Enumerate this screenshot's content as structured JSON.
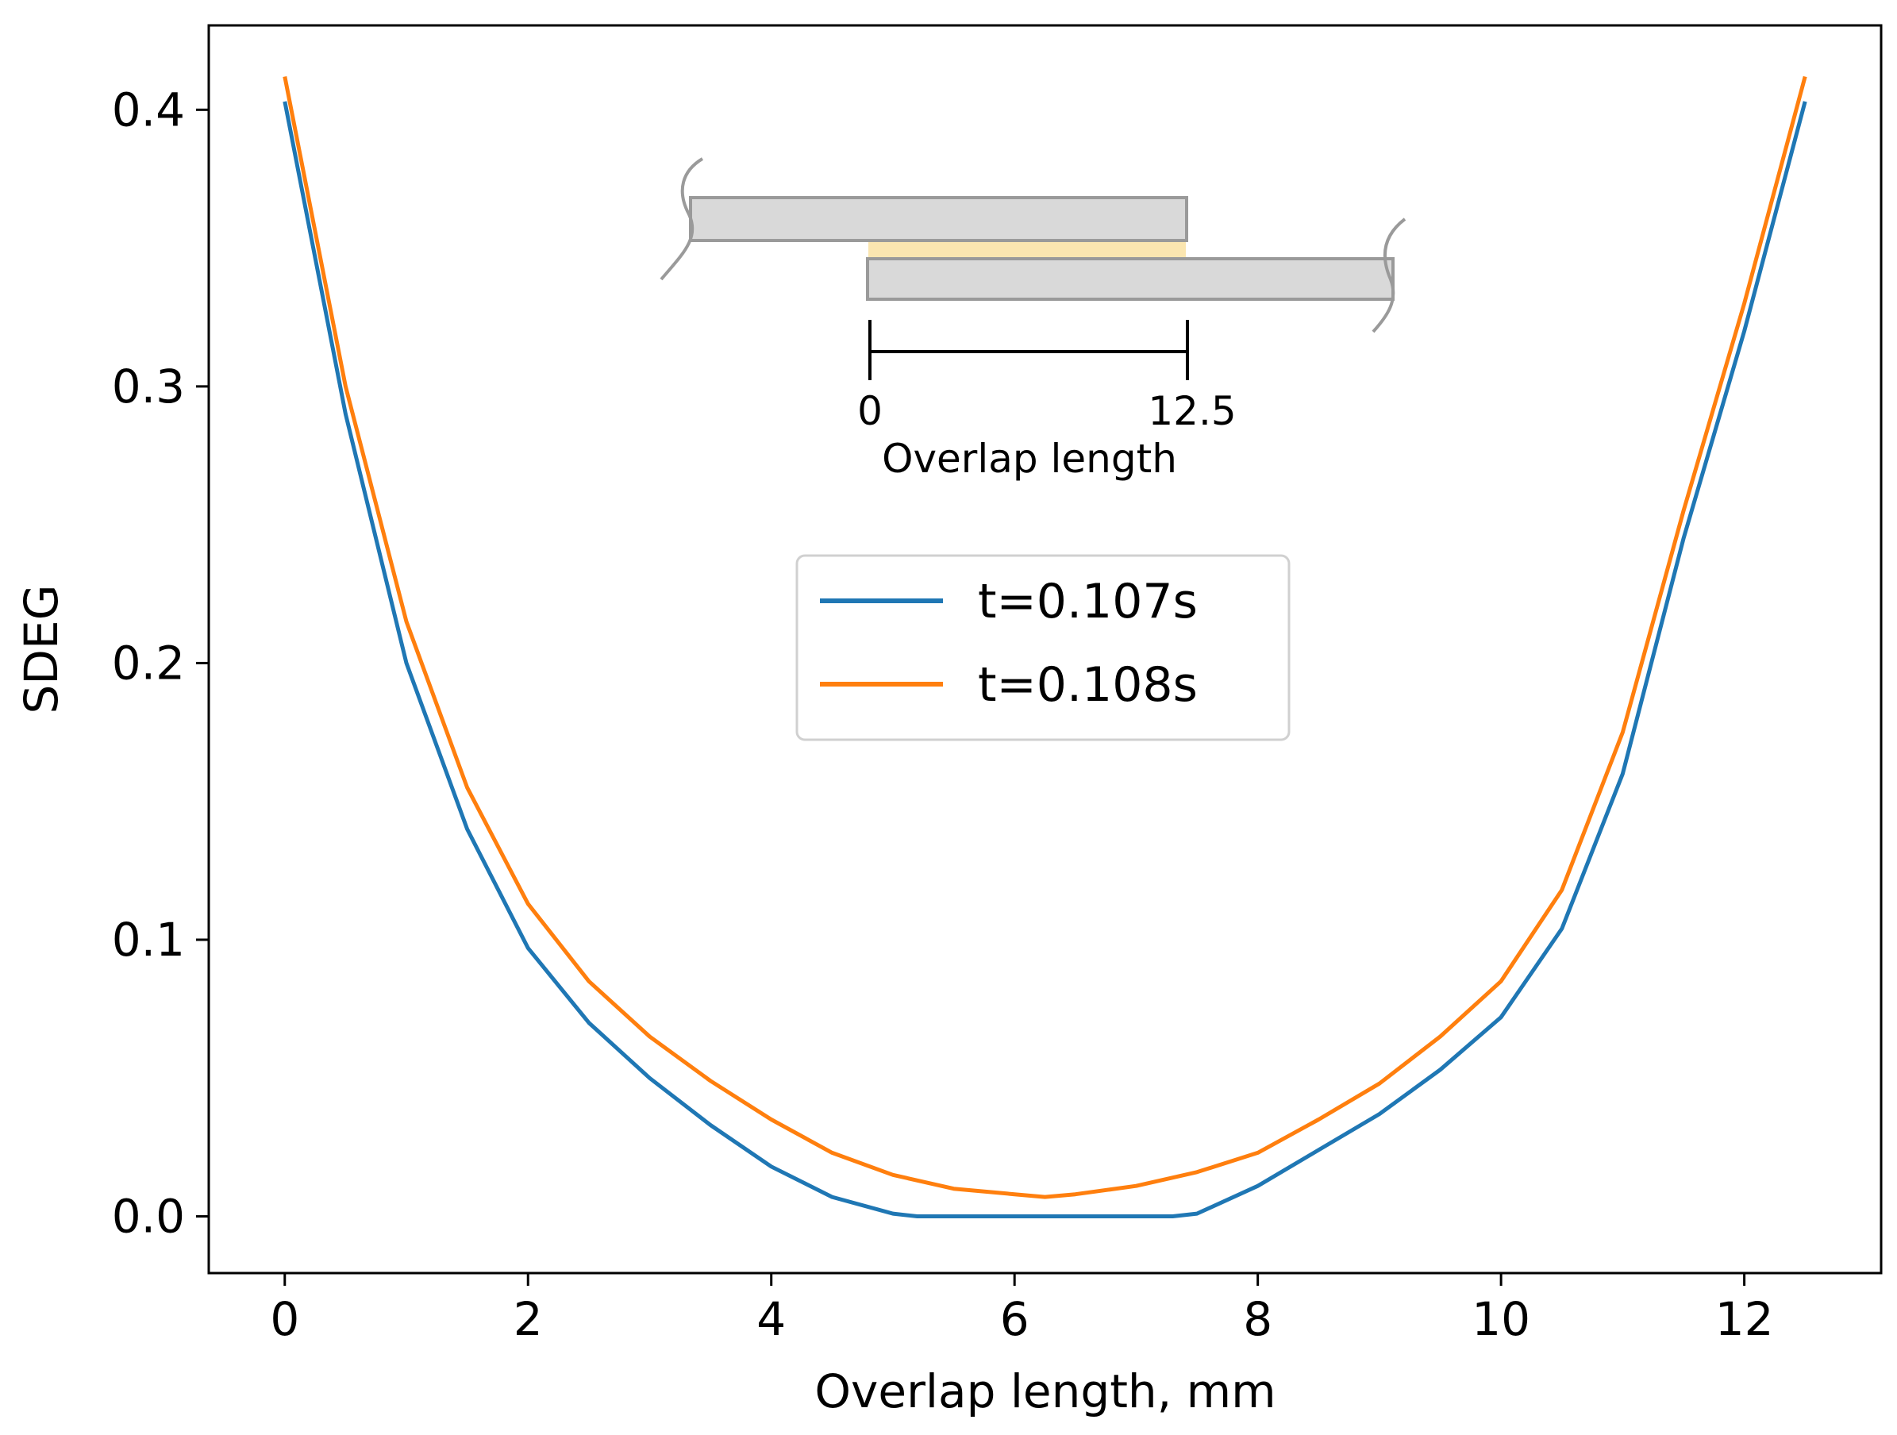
{
  "chart_data": {
    "type": "line",
    "title": "",
    "xlabel": "Overlap length, mm",
    "ylabel": "SDEG",
    "xlim": [
      -0.625,
      13.125
    ],
    "ylim": [
      -0.0205,
      0.4305
    ],
    "xticks": [
      0,
      2,
      4,
      6,
      8,
      10,
      12
    ],
    "yticks": [
      0.0,
      0.1,
      0.2,
      0.3,
      0.4
    ],
    "xtick_labels": [
      "0",
      "2",
      "4",
      "6",
      "8",
      "10",
      "12"
    ],
    "ytick_labels": [
      "0.0",
      "0.1",
      "0.2",
      "0.3",
      "0.4"
    ],
    "grid": false,
    "legend_position": "upper-center",
    "series": [
      {
        "name": "t=0.107s",
        "color": "#1f77b4",
        "x": [
          0,
          0.5,
          1.0,
          1.5,
          2.0,
          2.5,
          3.0,
          3.5,
          4.0,
          4.5,
          5.0,
          5.2,
          5.5,
          6.0,
          6.5,
          7.0,
          7.3,
          7.5,
          8.0,
          8.5,
          9.0,
          9.5,
          10.0,
          10.5,
          11.0,
          11.5,
          12.0,
          12.5
        ],
        "y": [
          0.403,
          0.29,
          0.2,
          0.14,
          0.097,
          0.07,
          0.05,
          0.033,
          0.018,
          0.007,
          0.001,
          0.0,
          0.0,
          0.0,
          0.0,
          0.0,
          0.0,
          0.001,
          0.011,
          0.024,
          0.037,
          0.053,
          0.072,
          0.104,
          0.16,
          0.245,
          0.32,
          0.403
        ]
      },
      {
        "name": "t=0.108s",
        "color": "#ff7f0e",
        "x": [
          0,
          0.5,
          1.0,
          1.5,
          2.0,
          2.5,
          3.0,
          3.5,
          4.0,
          4.5,
          5.0,
          5.5,
          6.0,
          6.25,
          6.5,
          7.0,
          7.5,
          8.0,
          8.5,
          9.0,
          9.5,
          10.0,
          10.5,
          11.0,
          11.5,
          12.0,
          12.5
        ],
        "y": [
          0.412,
          0.3,
          0.215,
          0.155,
          0.113,
          0.085,
          0.065,
          0.049,
          0.035,
          0.023,
          0.015,
          0.01,
          0.008,
          0.007,
          0.008,
          0.011,
          0.016,
          0.023,
          0.035,
          0.048,
          0.065,
          0.085,
          0.118,
          0.175,
          0.255,
          0.33,
          0.412
        ]
      }
    ],
    "inset": {
      "description_labels": [
        "0",
        "12.5"
      ],
      "caption": "Overlap length"
    }
  }
}
